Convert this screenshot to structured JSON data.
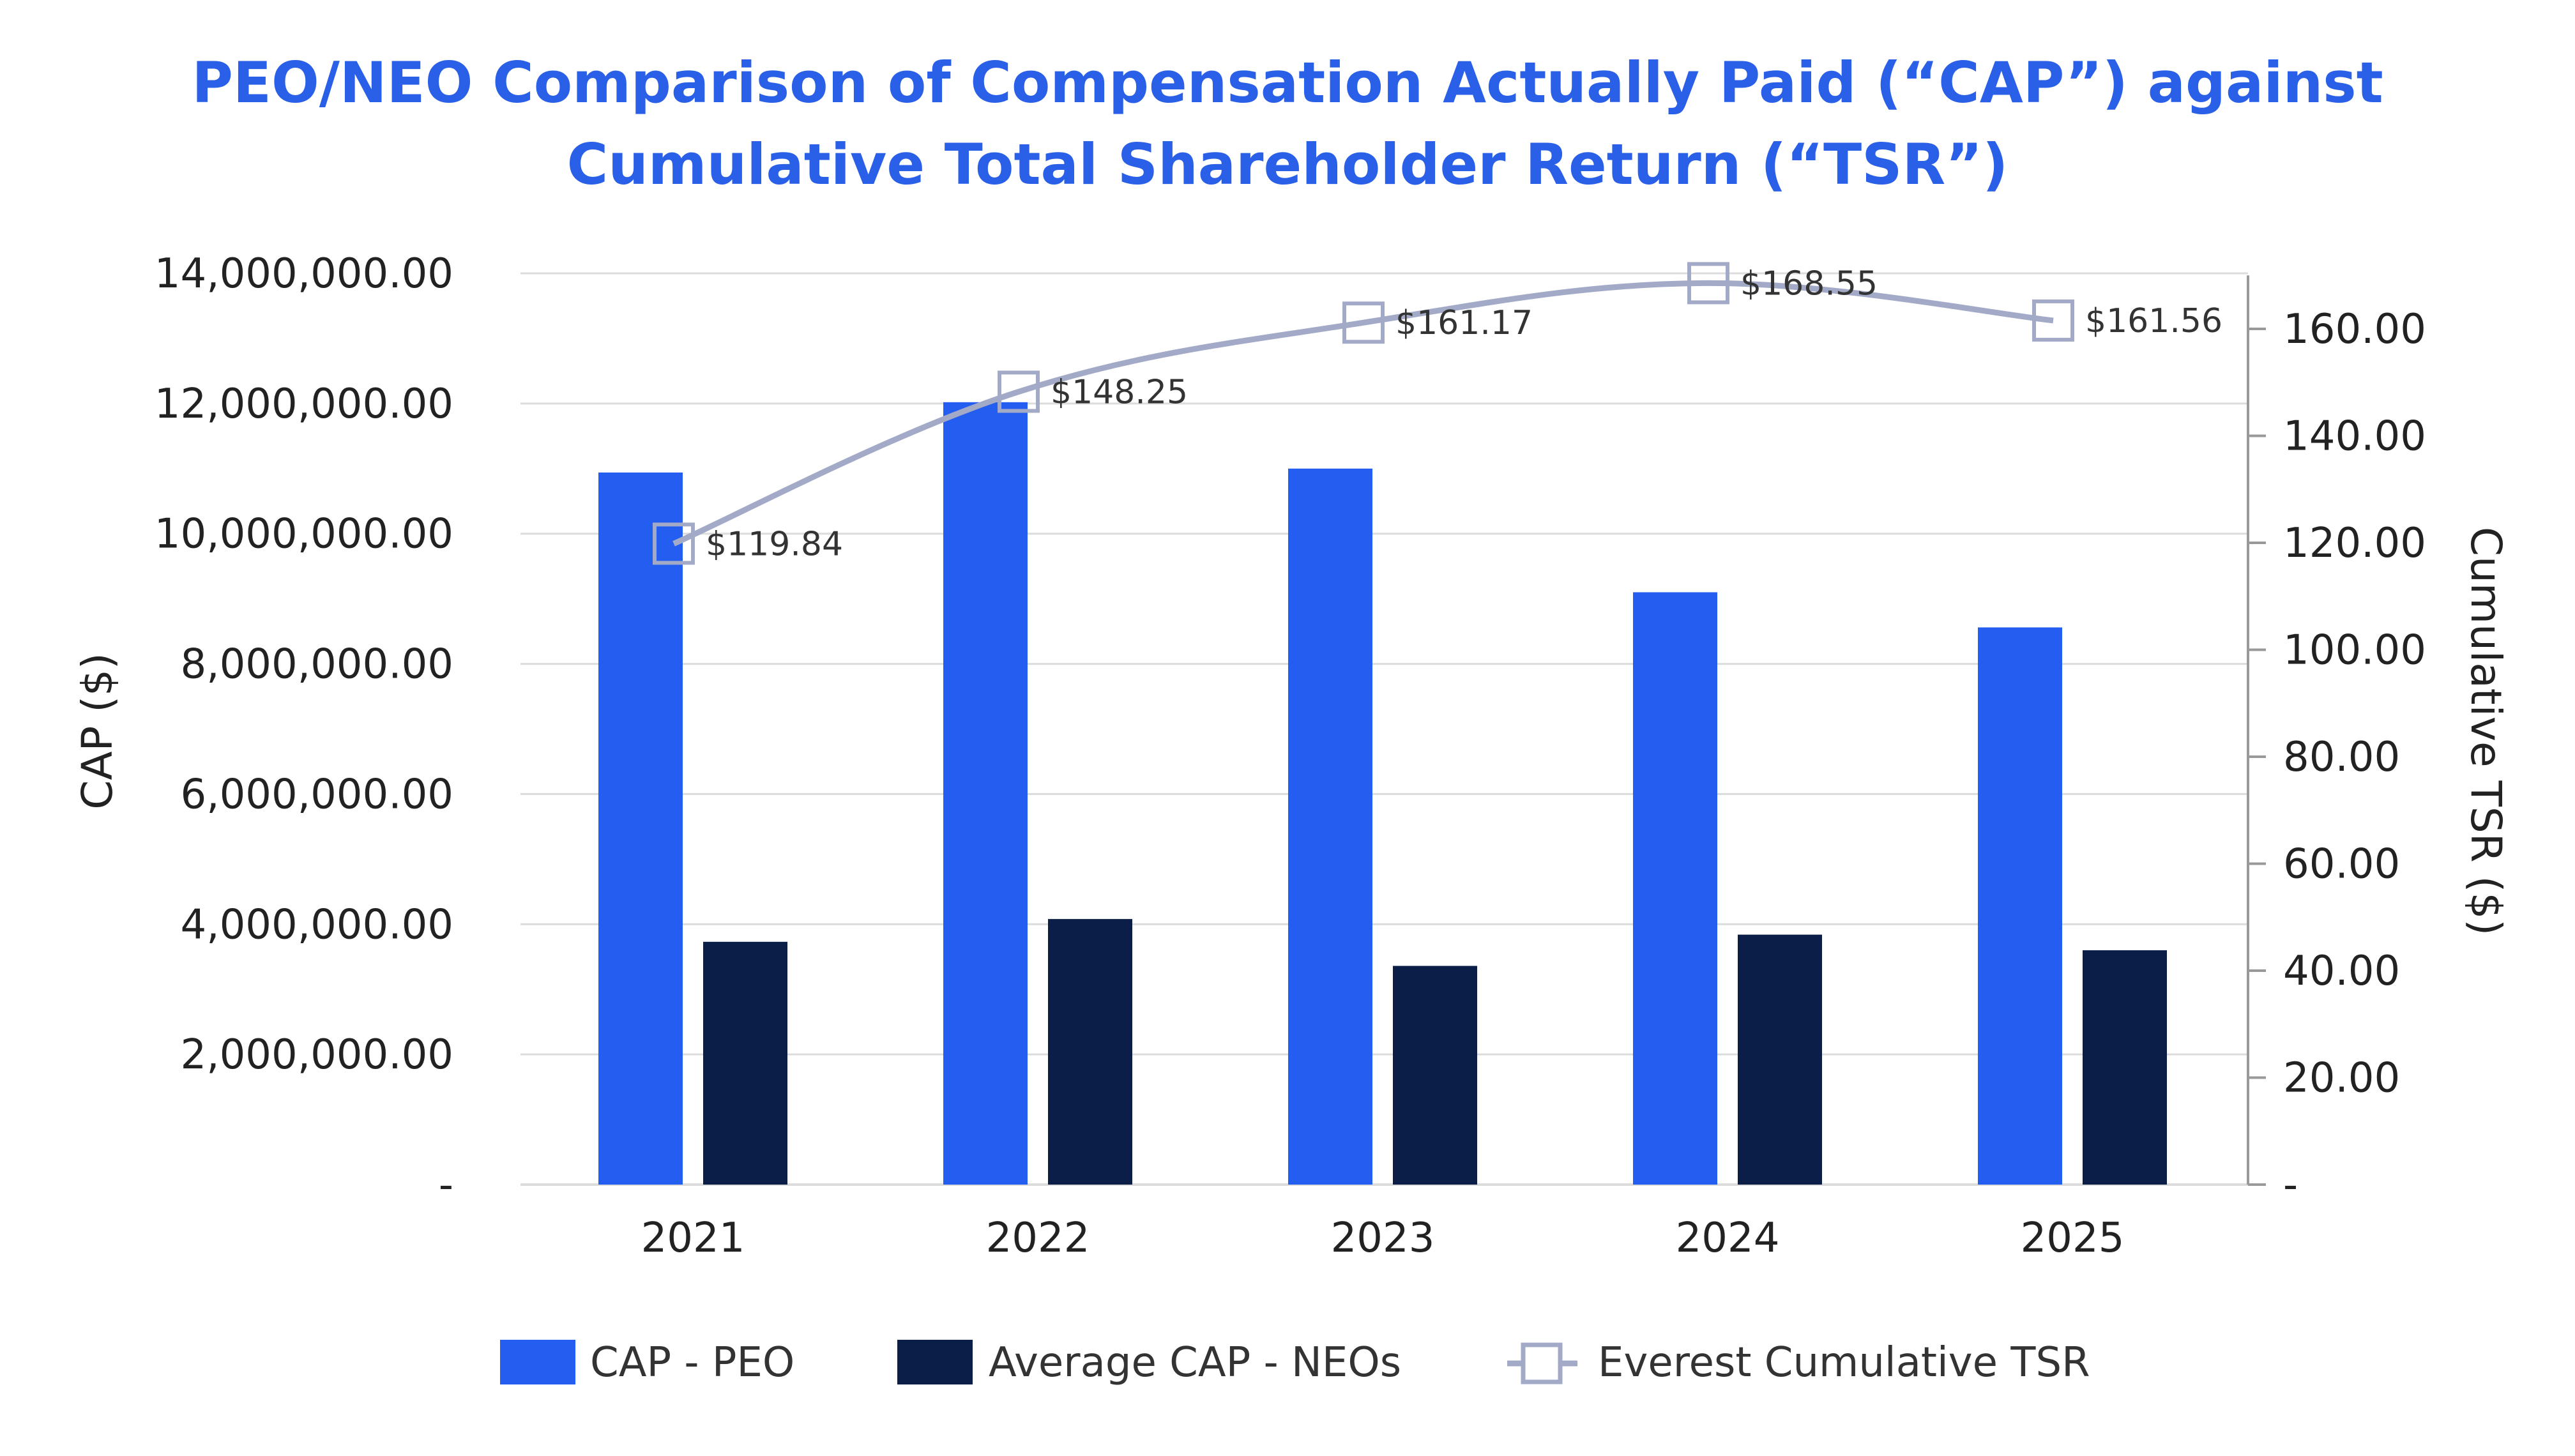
{
  "colors": {
    "peo": "#245ef0",
    "neo": "#0a1e47",
    "tsr": "#a3aac7",
    "title": "#2a5fe8",
    "grid": "#dcdcdc",
    "axis": "#999999"
  },
  "chart_data": {
    "type": "bar",
    "title_lines": [
      "PEO/NEO Comparison of Compensation Actually Paid (“CAP”) against",
      "Cumulative Total Shareholder Return (“TSR”)"
    ],
    "categories": [
      "2021",
      "2022",
      "2023",
      "2024",
      "2025"
    ],
    "series": [
      {
        "name": "CAP - PEO",
        "type": "bar",
        "axis": "left",
        "values": [
          10940000,
          12020000,
          11000000,
          9100000,
          8560000
        ]
      },
      {
        "name": "Average CAP - NEOs",
        "type": "bar",
        "axis": "left",
        "values": [
          3730000,
          4080000,
          3360000,
          3840000,
          3600000
        ]
      },
      {
        "name": "Everest Cumulative TSR",
        "type": "line",
        "axis": "right",
        "values": [
          119.84,
          148.25,
          161.17,
          168.55,
          161.56
        ],
        "labels": [
          "$119.84",
          "$148.25",
          "$161.17",
          "$168.55",
          "$161.56"
        ]
      }
    ],
    "ylabel": "CAP ($)",
    "y2label": "Cumulative TSR ($)",
    "ylim": [
      0,
      14000000
    ],
    "y2lim": [
      0,
      170
    ],
    "y_ticks": [
      {
        "value": 0,
        "label": "-"
      },
      {
        "value": 2000000,
        "label": "2,000,000.00"
      },
      {
        "value": 4000000,
        "label": "4,000,000.00"
      },
      {
        "value": 6000000,
        "label": "6,000,000.00"
      },
      {
        "value": 8000000,
        "label": "8,000,000.00"
      },
      {
        "value": 10000000,
        "label": "10,000,000.00"
      },
      {
        "value": 12000000,
        "label": "12,000,000.00"
      },
      {
        "value": 14000000,
        "label": "14,000,000.00"
      }
    ],
    "y2_ticks": [
      {
        "value": 0,
        "label": "-"
      },
      {
        "value": 20,
        "label": "20.00"
      },
      {
        "value": 40,
        "label": "40.00"
      },
      {
        "value": 60,
        "label": "60.00"
      },
      {
        "value": 80,
        "label": "80.00"
      },
      {
        "value": 100,
        "label": "100.00"
      },
      {
        "value": 120,
        "label": "120.00"
      },
      {
        "value": 140,
        "label": "140.00"
      },
      {
        "value": 160,
        "label": "160.00"
      }
    ],
    "grid": true,
    "legend_position": "bottom"
  }
}
